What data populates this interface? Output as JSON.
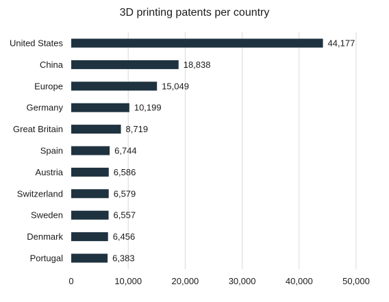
{
  "chart_data": {
    "type": "bar",
    "orientation": "horizontal",
    "title": "3D printing patents per country",
    "xlabel": "",
    "ylabel": "",
    "categories": [
      "United States",
      "China",
      "Europe",
      "Germany",
      "Great Britain",
      "Spain",
      "Austria",
      "Switzerland",
      "Sweden",
      "Denmark",
      "Portugal"
    ],
    "values": [
      44177,
      18838,
      15049,
      10199,
      8719,
      6744,
      6586,
      6579,
      6557,
      6456,
      6383
    ],
    "value_labels": [
      "44,177",
      "18,838",
      "15,049",
      "10,199",
      "8,719",
      "6,744",
      "6,586",
      "6,579",
      "6,557",
      "6,456",
      "6,383"
    ],
    "xlim": [
      0,
      50000
    ],
    "x_ticks": [
      0,
      10000,
      20000,
      30000,
      40000,
      50000
    ],
    "x_tick_labels": [
      "0",
      "10,000",
      "20,000",
      "30,000",
      "40,000",
      "50,000"
    ],
    "grid": true,
    "legend": false,
    "bar_color": "#1f323f"
  }
}
